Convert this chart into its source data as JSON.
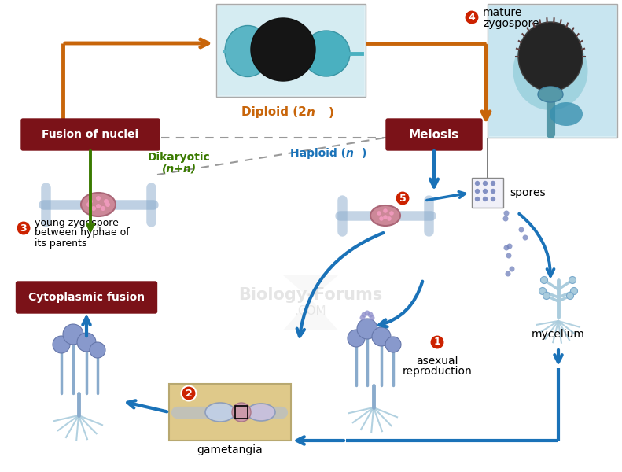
{
  "bg_color": "#ffffff",
  "dark_red": "#7b1218",
  "orange": "#c8650a",
  "blue": "#1a72b8",
  "green_dark": "#3a7a00",
  "red_circle": "#cc2200",
  "tan_box": "#dfc98a",
  "gray_dash": "#888888",
  "spore_purple": "#7070bb",
  "hypha_blue": "#8aabcc",
  "hypha_light": "#aaccdd",
  "zygospore_pink": "#cc8899",
  "sporangia_purple": "#8899cc",
  "labels": {
    "fusion_of_nuclei": "Fusion of nuclei",
    "meiosis": "Meiosis",
    "cytoplasmic_fusion": "Cytoplasmic fusion",
    "diploid": "Diploid (2",
    "diploid_n": "n)",
    "dikaryotic_line1": "Dikaryotic",
    "dikaryotic_line2": "(n+n)",
    "haploid": "Haploid (",
    "haploid_n": "n)",
    "mature_zygospore_line1": "mature",
    "mature_zygospore_line2": "zygospore",
    "spores": "spores",
    "mycelium": "mycelium",
    "asexual_line1": "asexual",
    "asexual_line2": "reproduction",
    "gametangia": "gametangia",
    "young_zygospore_line1": "young zygospore",
    "young_zygospore_line2": "between hyphae of",
    "young_zygospore_line3": "its parents"
  }
}
